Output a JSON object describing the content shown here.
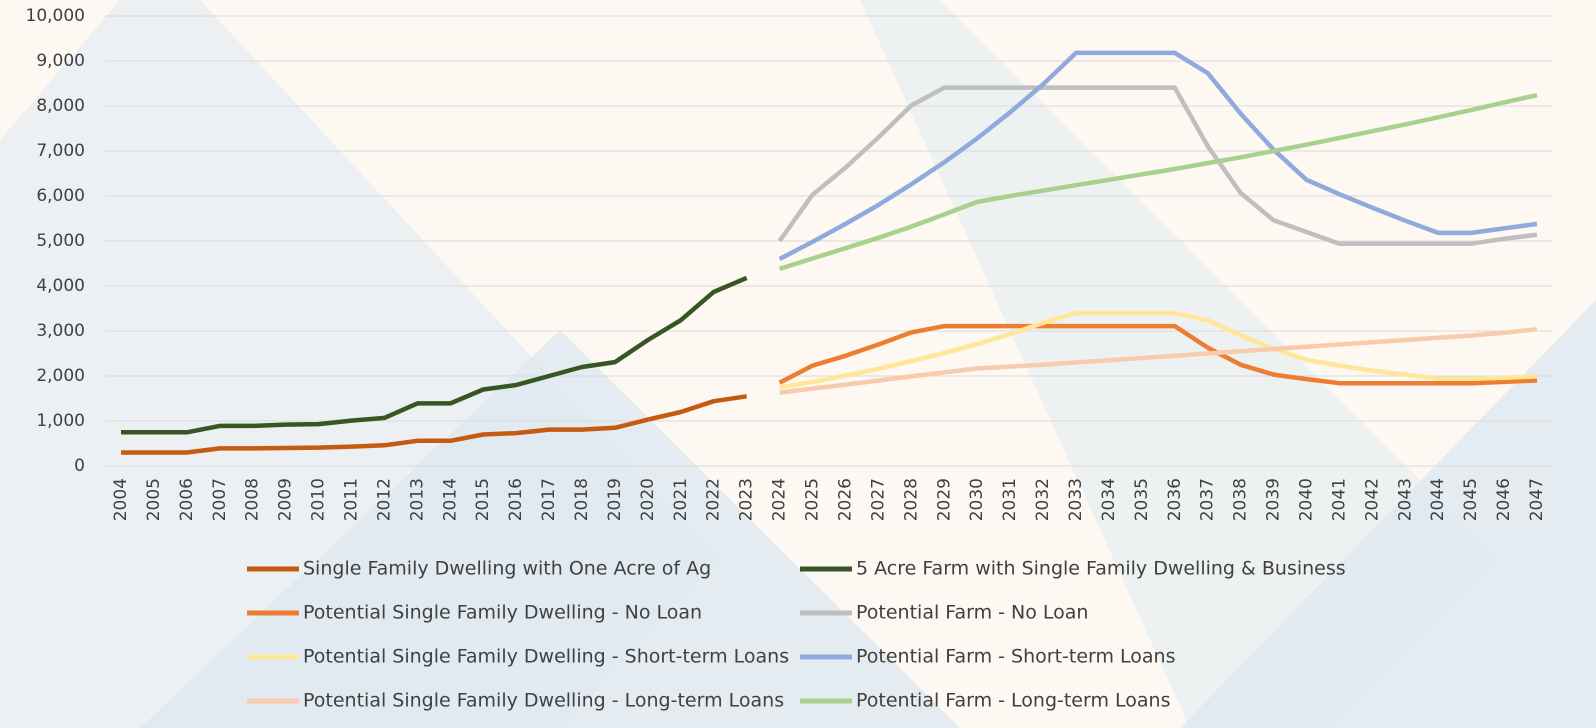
{
  "chart_data": {
    "type": "line",
    "categories": [
      "2004",
      "2005",
      "2006",
      "2007",
      "2008",
      "2009",
      "2010",
      "2011",
      "2012",
      "2013",
      "2014",
      "2015",
      "2016",
      "2017",
      "2018",
      "2019",
      "2020",
      "2021",
      "2022",
      "2023",
      "2024",
      "2025",
      "2026",
      "2027",
      "2028",
      "2029",
      "2030",
      "2031",
      "2032",
      "2033",
      "2034",
      "2035",
      "2036",
      "2037",
      "2038",
      "2039",
      "2040",
      "2041",
      "2042",
      "2043",
      "2044",
      "2045",
      "2046",
      "2047"
    ],
    "ylim": [
      0,
      10000
    ],
    "yticks": [
      0,
      {
        "value": 1000,
        "label": "1,000"
      },
      {
        "value": 2000,
        "label": "2,000"
      },
      {
        "value": 3000,
        "label": "3,000"
      },
      {
        "value": 4000,
        "label": "4,000"
      },
      {
        "value": 5000,
        "label": "5,000"
      },
      {
        "value": 6000,
        "label": "6,000"
      },
      {
        "value": 7000,
        "label": "7,000"
      },
      {
        "value": 8000,
        "label": "8,000"
      },
      {
        "value": 9000,
        "label": "9,000"
      },
      {
        "value": 10000,
        "label": "10,000"
      }
    ],
    "grid": true,
    "legend": "bottom",
    "series": [
      {
        "name": "Single Family Dwelling with One Acre of Ag",
        "color": "#c55a11",
        "values": [
          300,
          300,
          300,
          390,
          390,
          400,
          410,
          430,
          460,
          560,
          560,
          700,
          730,
          810,
          810,
          850,
          1030,
          1200,
          1440,
          1550,
          null,
          null,
          null,
          null,
          null,
          null,
          null,
          null,
          null,
          null,
          null,
          null,
          null,
          null,
          null,
          null,
          null,
          null,
          null,
          null,
          null,
          null,
          null,
          null
        ]
      },
      {
        "name": "5 Acre Farm with Single Family Dwelling & Business",
        "color": "#375623",
        "values": [
          750,
          750,
          750,
          890,
          890,
          920,
          930,
          1010,
          1070,
          1390,
          1390,
          1700,
          1800,
          2000,
          2200,
          2310,
          2800,
          3240,
          3870,
          4180,
          null,
          null,
          null,
          null,
          null,
          null,
          null,
          null,
          null,
          null,
          null,
          null,
          null,
          null,
          null,
          null,
          null,
          null,
          null,
          null,
          null,
          null,
          null,
          null
        ]
      },
      {
        "name": "Potential Single Family Dwelling - No Loan",
        "color": "#ed7d31",
        "values": [
          null,
          null,
          null,
          null,
          null,
          null,
          null,
          null,
          null,
          null,
          null,
          null,
          null,
          null,
          null,
          null,
          null,
          null,
          null,
          null,
          1850,
          2230,
          2450,
          2700,
          2970,
          3110,
          3110,
          3110,
          3110,
          3110,
          3110,
          3110,
          3110,
          2630,
          2250,
          2030,
          1930,
          1840,
          1840,
          1840,
          1840,
          1840,
          1870,
          1900
        ]
      },
      {
        "name": "Potential Farm - No Loan",
        "color": "#bfbfbf",
        "values": [
          null,
          null,
          null,
          null,
          null,
          null,
          null,
          null,
          null,
          null,
          null,
          null,
          null,
          null,
          null,
          null,
          null,
          null,
          null,
          null,
          5000,
          6030,
          6630,
          7300,
          8010,
          8410,
          8410,
          8410,
          8410,
          8410,
          8410,
          8410,
          8410,
          7110,
          6070,
          5460,
          5200,
          4940,
          4940,
          4940,
          4940,
          4940,
          5050,
          5140
        ]
      },
      {
        "name": "Potential Single Family Dwelling - Short-term Loans",
        "color": "#ffe699",
        "values": [
          null,
          null,
          null,
          null,
          null,
          null,
          null,
          null,
          null,
          null,
          null,
          null,
          null,
          null,
          null,
          null,
          null,
          null,
          null,
          null,
          1750,
          1870,
          2010,
          2160,
          2330,
          2510,
          2710,
          2930,
          3180,
          3400,
          3400,
          3400,
          3400,
          3240,
          2900,
          2600,
          2360,
          2230,
          2120,
          2030,
          1940,
          1940,
          1960,
          1990
        ]
      },
      {
        "name": "Potential Farm - Short-term Loans",
        "color": "#8faadc",
        "values": [
          null,
          null,
          null,
          null,
          null,
          null,
          null,
          null,
          null,
          null,
          null,
          null,
          null,
          null,
          null,
          null,
          null,
          null,
          null,
          null,
          4600,
          4980,
          5380,
          5800,
          6260,
          6750,
          7280,
          7860,
          8480,
          9180,
          9180,
          9180,
          9180,
          8730,
          7830,
          7030,
          6360,
          6040,
          5740,
          5450,
          5180,
          5180,
          5280,
          5380
        ]
      },
      {
        "name": "Potential Single Family Dwelling - Long-term Loans",
        "color": "#f8cbad",
        "values": [
          null,
          null,
          null,
          null,
          null,
          null,
          null,
          null,
          null,
          null,
          null,
          null,
          null,
          null,
          null,
          null,
          null,
          null,
          null,
          null,
          1630,
          1720,
          1810,
          1900,
          1990,
          2080,
          2170,
          2210,
          2250,
          2300,
          2350,
          2400,
          2450,
          2500,
          2550,
          2600,
          2650,
          2700,
          2750,
          2800,
          2850,
          2900,
          2960,
          3040
        ]
      },
      {
        "name": "Potential Farm - Long-term Loans",
        "color": "#a9d18e",
        "values": [
          null,
          null,
          null,
          null,
          null,
          null,
          null,
          null,
          null,
          null,
          null,
          null,
          null,
          null,
          null,
          null,
          null,
          null,
          null,
          null,
          4380,
          4610,
          4840,
          5070,
          5320,
          5590,
          5870,
          6000,
          6120,
          6240,
          6360,
          6480,
          6600,
          6730,
          6860,
          7000,
          7140,
          7290,
          7440,
          7590,
          7750,
          7910,
          8080,
          8240
        ]
      }
    ]
  }
}
